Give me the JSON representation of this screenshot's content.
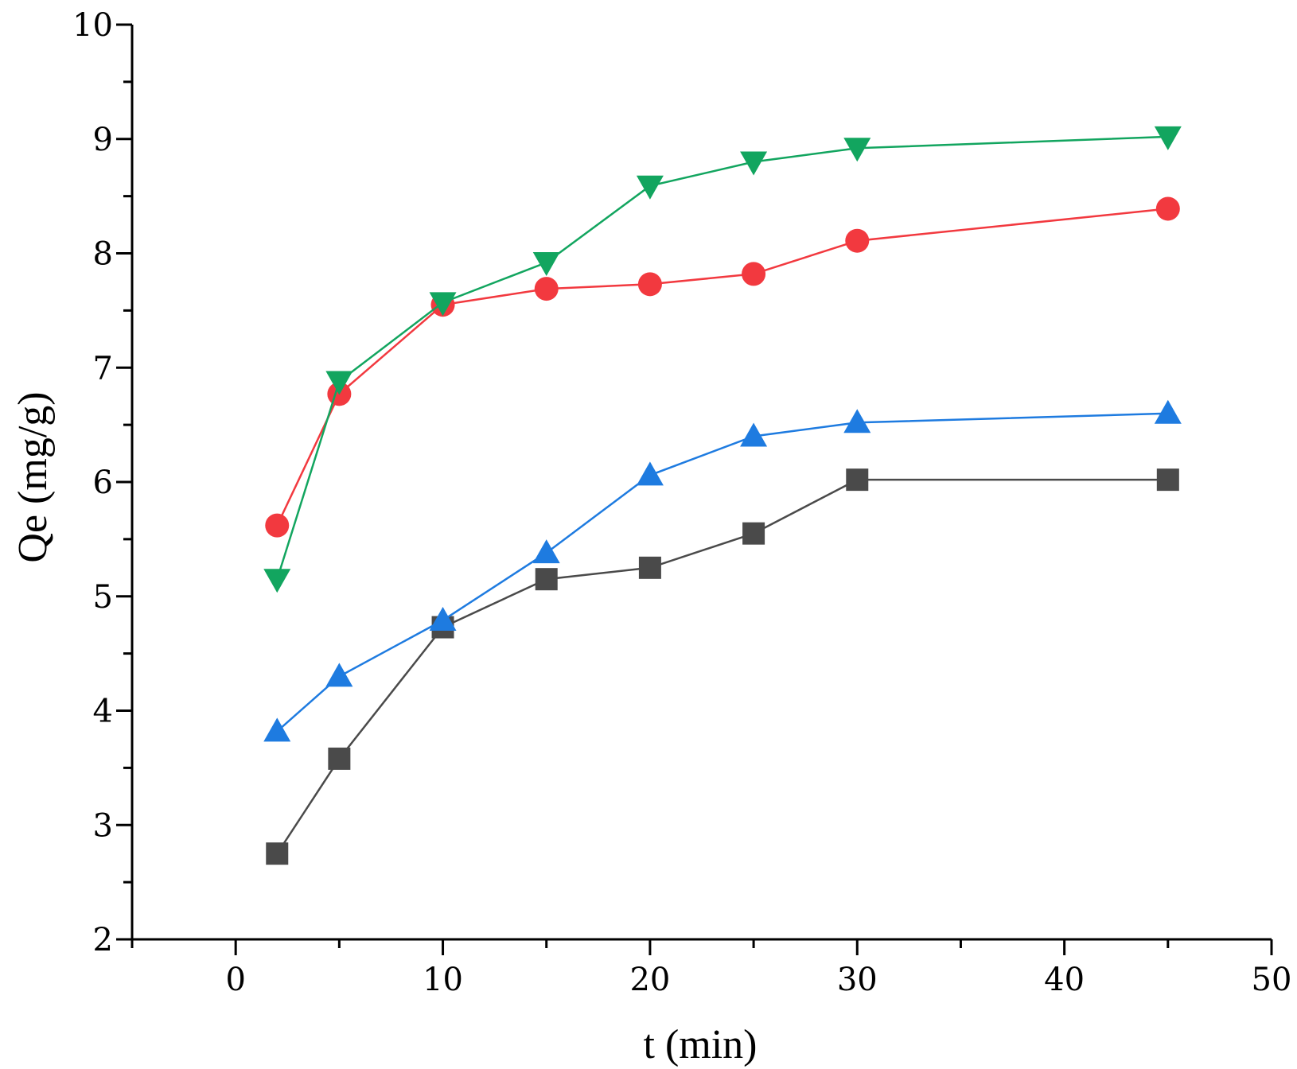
{
  "chart_data": {
    "type": "line",
    "title": "",
    "xlabel": "t (min)",
    "ylabel": "Qe (mg/g)",
    "xlim": [
      -5,
      50
    ],
    "ylim": [
      2,
      10
    ],
    "x_ticks": [
      0,
      10,
      20,
      30,
      40,
      50
    ],
    "y_ticks": [
      2,
      3,
      4,
      5,
      6,
      7,
      8,
      9,
      10
    ],
    "x_tick_labels": [
      "0",
      "10",
      "20",
      "30",
      "40",
      "50"
    ],
    "y_tick_labels": [
      "2",
      "3",
      "4",
      "5",
      "6",
      "7",
      "8",
      "9",
      "10"
    ],
    "grid": false,
    "legend": "none",
    "x": [
      2,
      5,
      10,
      15,
      20,
      25,
      30,
      45
    ],
    "series": [
      {
        "name": "series-square",
        "marker": "square",
        "color": "#4a4a4a",
        "values": [
          2.75,
          3.58,
          4.73,
          5.15,
          5.25,
          5.55,
          6.02,
          6.02
        ]
      },
      {
        "name": "series-circle",
        "marker": "circle",
        "color": "#f2393f",
        "values": [
          5.62,
          6.77,
          7.55,
          7.69,
          7.73,
          7.82,
          8.11,
          8.39
        ]
      },
      {
        "name": "series-triangle-up",
        "marker": "triangle-up",
        "color": "#1e7be0",
        "values": [
          3.82,
          4.3,
          4.79,
          5.38,
          6.06,
          6.4,
          6.52,
          6.6
        ]
      },
      {
        "name": "series-triangle-down",
        "marker": "triangle-down",
        "color": "#12a55f",
        "values": [
          5.15,
          6.88,
          7.57,
          7.92,
          8.59,
          8.8,
          8.92,
          9.02
        ]
      }
    ]
  }
}
